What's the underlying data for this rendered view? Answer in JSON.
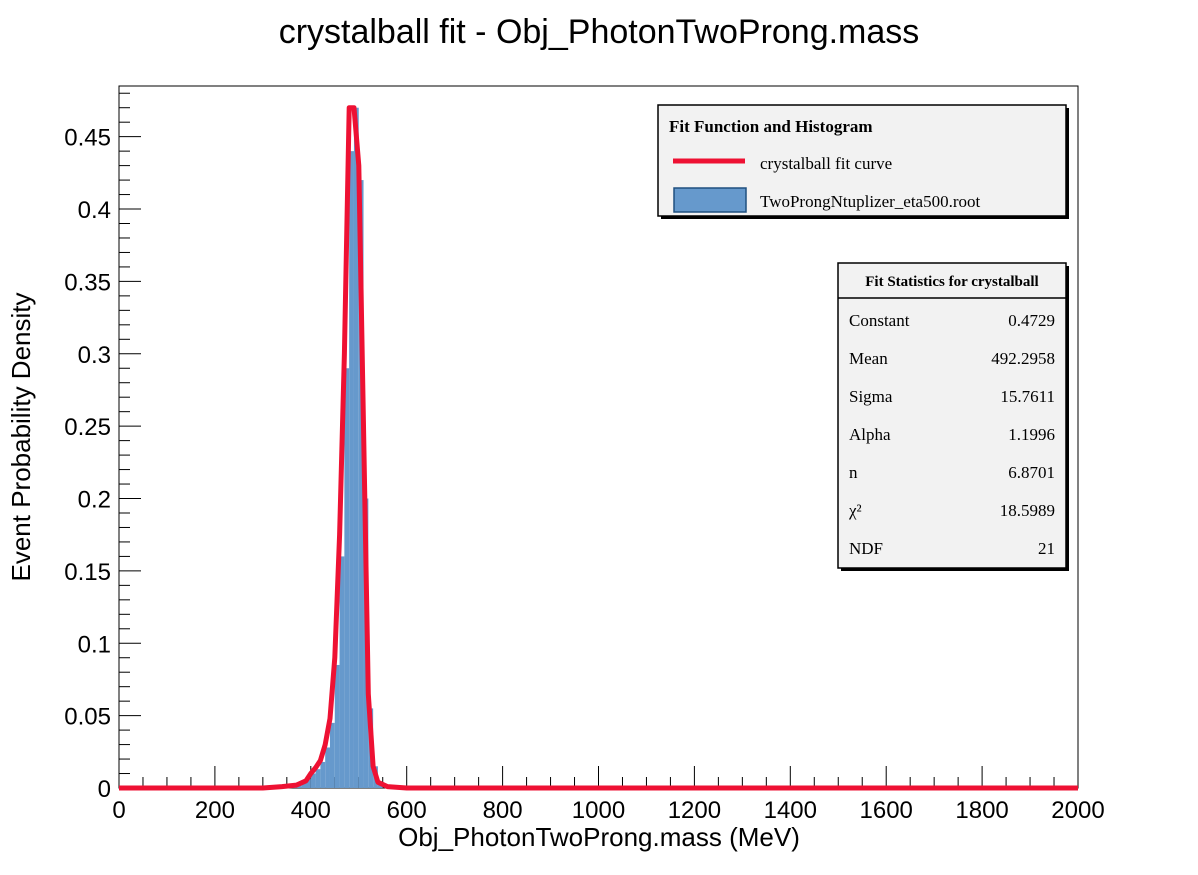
{
  "chart_data": {
    "type": "bar",
    "title": "crystalball fit - Obj_PhotonTwoProng.mass",
    "xlabel": "Obj_PhotonTwoProng.mass (MeV)",
    "ylabel": "Event Probability Density",
    "xlim": [
      0,
      2000
    ],
    "ylim": [
      0,
      0.485
    ],
    "x_ticks": [
      0,
      200,
      400,
      600,
      800,
      1000,
      1200,
      1400,
      1600,
      1800,
      2000
    ],
    "y_ticks": [
      0,
      0.05,
      0.1,
      0.15,
      0.2,
      0.25,
      0.3,
      0.35,
      0.4,
      0.45
    ],
    "y_tick_labels": [
      "0",
      "0.05",
      "0.1",
      "0.15",
      "0.2",
      "0.25",
      "0.3",
      "0.35",
      "0.4",
      "0.45"
    ],
    "grid": false,
    "histogram": {
      "name": "TwoProngNtuplizer_eta500.root",
      "color": "#6699cc",
      "bin_edges": [
        340,
        350,
        360,
        370,
        380,
        390,
        400,
        410,
        420,
        430,
        440,
        450,
        460,
        470,
        480,
        490,
        500,
        510,
        520,
        530,
        540,
        550
      ],
      "values": [
        0.001,
        0.001,
        0.001,
        0.002,
        0.004,
        0.006,
        0.01,
        0.013,
        0.018,
        0.028,
        0.045,
        0.085,
        0.16,
        0.29,
        0.44,
        0.47,
        0.42,
        0.2,
        0.055,
        0.015,
        0.004
      ]
    },
    "fit_curve": {
      "name": "crystalball fit curve",
      "color": "#ee1133",
      "x": [
        0,
        300,
        340,
        370,
        390,
        400,
        410,
        420,
        430,
        440,
        450,
        460,
        470,
        480,
        490,
        500,
        510,
        520,
        530,
        540,
        560,
        600,
        2000
      ],
      "y": [
        0,
        0,
        0.001,
        0.002,
        0.005,
        0.01,
        0.014,
        0.019,
        0.03,
        0.048,
        0.09,
        0.175,
        0.3,
        0.47,
        0.47,
        0.43,
        0.25,
        0.065,
        0.015,
        0.004,
        0.001,
        0,
        0
      ]
    },
    "legend": {
      "title": "Fit Function and Histogram",
      "position": "top-right",
      "entries": [
        "crystalball fit curve",
        "TwoProngNtuplizer_eta500.root"
      ]
    },
    "stats_box": {
      "title": "Fit Statistics for crystalball",
      "position": "right",
      "rows": [
        {
          "label": "Constant",
          "value": "0.4729"
        },
        {
          "label": "Mean",
          "value": "492.2958"
        },
        {
          "label": "Sigma",
          "value": "15.7611"
        },
        {
          "label": "Alpha",
          "value": "1.1996"
        },
        {
          "label": "n",
          "value": "6.8701"
        },
        {
          "label": "χ²",
          "value": "18.5989"
        },
        {
          "label": "NDF",
          "value": "21"
        }
      ]
    }
  }
}
